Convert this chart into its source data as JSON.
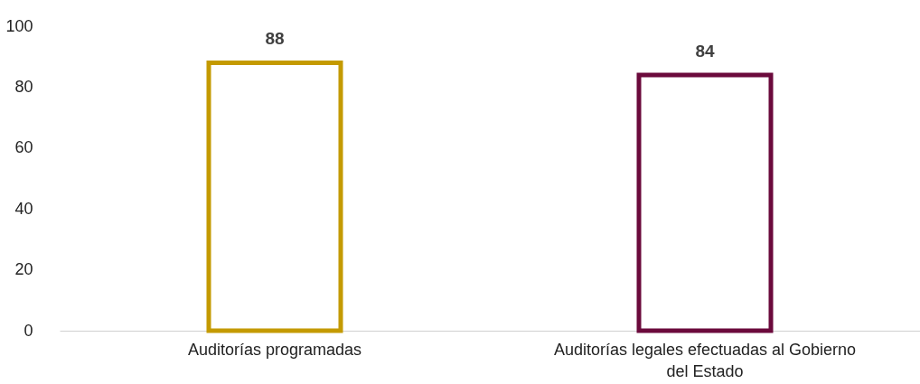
{
  "chart_data": {
    "type": "bar",
    "categories": [
      "Auditorías programadas",
      "Auditorías legales efectuadas al Gobierno del Estado"
    ],
    "values": [
      88,
      84
    ],
    "colors": [
      "#c49a00",
      "#6b0a3c"
    ],
    "ylim": [
      0,
      100
    ],
    "yticks": [
      0,
      20,
      40,
      60,
      80,
      100
    ],
    "grid": false,
    "data_labels": true
  }
}
